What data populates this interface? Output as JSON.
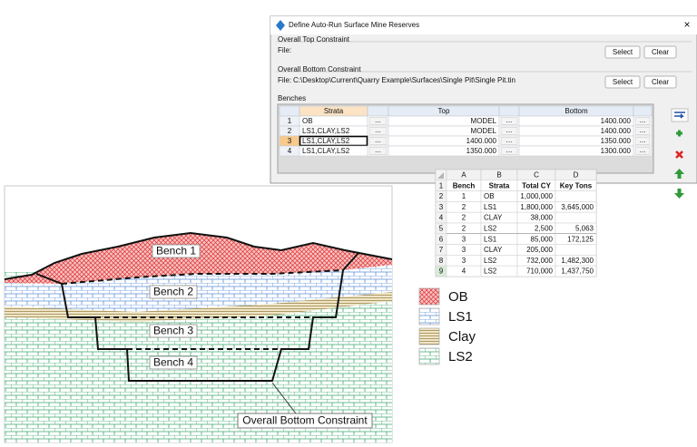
{
  "dialog": {
    "title": "Define Auto-Run Surface Mine Reserves",
    "close": "×",
    "top_constraint": {
      "label": "Overall Top Constraint",
      "file_label": "File:",
      "select": "Select",
      "clear": "Clear"
    },
    "bottom_constraint": {
      "label": "Overall Bottom Constraint",
      "file_label": "File:",
      "file_path": "C:\\Desktop\\Current\\Quarry Example\\Surfaces\\Single Pit\\Single Pit.tin",
      "select": "Select",
      "clear": "Clear"
    },
    "benches": {
      "label": "Benches",
      "columns": [
        "Strata",
        "Top",
        "Bottom"
      ],
      "ellipsis": "...",
      "rows": [
        [
          1,
          "OB",
          "MODEL",
          "1400.000"
        ],
        [
          2,
          "LS1,CLAY,LS2",
          "MODEL",
          "1400.000"
        ],
        [
          3,
          "LS1,CLAY,LS2",
          "1400.000",
          "1350.000"
        ],
        [
          4,
          "LS1,CLAY,LS2",
          "1350.000",
          "1300.000"
        ]
      ]
    }
  },
  "spreadsheet": {
    "columns": [
      "A",
      "B",
      "C",
      "D"
    ],
    "rows": [
      [
        1,
        "Bench",
        "Strata",
        "Total CY",
        "Key Tons"
      ],
      [
        2,
        1,
        "OB",
        "1,000,000",
        null
      ],
      [
        3,
        2,
        "LS1",
        "1,800,000",
        "3,645,000"
      ],
      [
        4,
        2,
        "CLAY",
        "38,000",
        null
      ],
      [
        5,
        2,
        "LS2",
        "2,500",
        "5,063"
      ],
      [
        6,
        3,
        "LS1",
        "85,000",
        "172,125"
      ],
      [
        7,
        3,
        "CLAY",
        "205,000",
        null
      ],
      [
        8,
        3,
        "LS2",
        "732,000",
        "1,482,300"
      ],
      [
        9,
        4,
        "LS2",
        "710,000",
        "1,437,750"
      ]
    ]
  },
  "diagram": {
    "bench_labels": [
      "Bench 1",
      "Bench 2",
      "Bench 3",
      "Bench 4"
    ],
    "bottom_constraint_label": "Overall Bottom Constraint"
  },
  "legend": [
    "OB",
    "LS1",
    "Clay",
    "LS2"
  ]
}
